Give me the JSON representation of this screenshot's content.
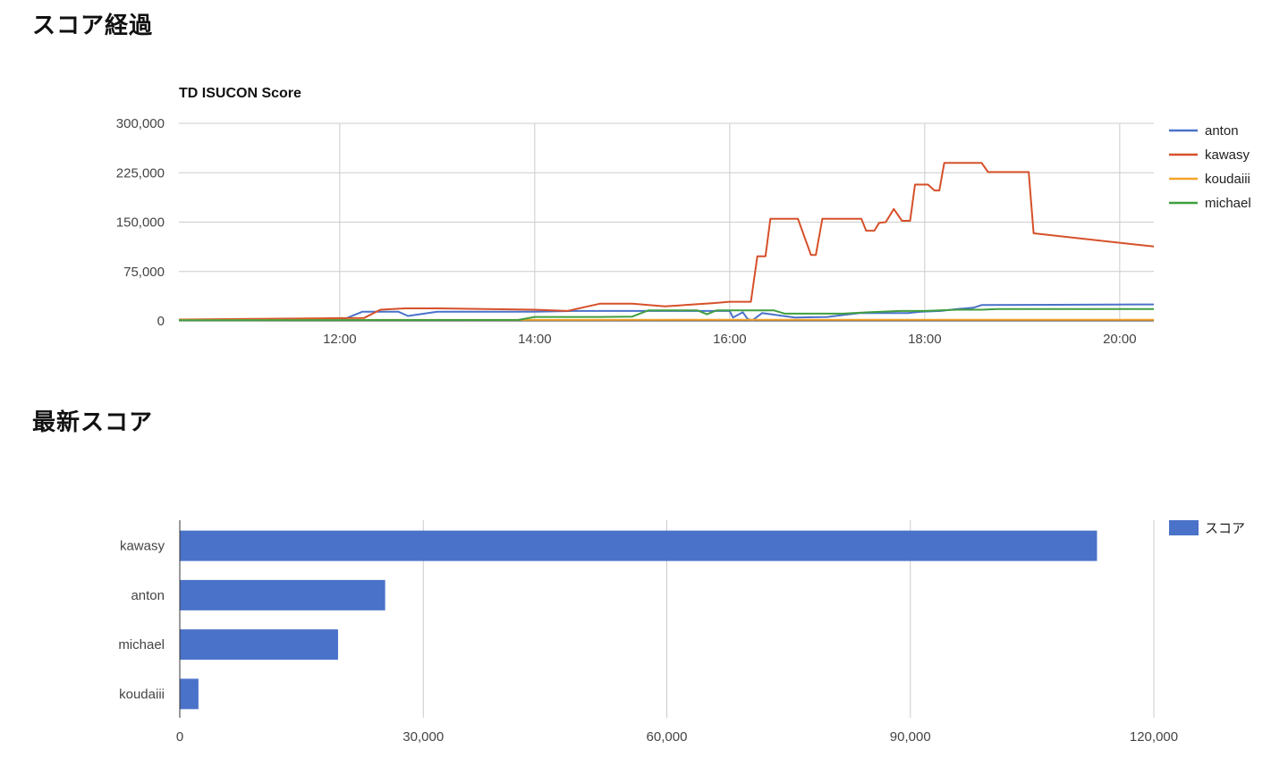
{
  "sections": {
    "history_title": "スコア経過",
    "latest_title": "最新スコア"
  },
  "chart_data": [
    {
      "type": "line",
      "title": "TD ISUCON Score",
      "xlabel": "",
      "ylabel": "",
      "xlim": [
        "10:21",
        "20:21"
      ],
      "ylim": [
        0,
        300000
      ],
      "x_ticks": [
        "12:00",
        "14:00",
        "16:00",
        "18:00",
        "20:00"
      ],
      "y_ticks": [
        "0",
        "75,000",
        "150,000",
        "225,000",
        "300,000"
      ],
      "grid": true,
      "legend_position": "right",
      "series": [
        {
          "name": "anton",
          "color": "#4a72c9",
          "points": [
            [
              "10:21",
              1500
            ],
            [
              "11:50",
              2500
            ],
            [
              "12:03",
              3000
            ],
            [
              "12:14",
              14000
            ],
            [
              "12:36",
              14000
            ],
            [
              "12:42",
              7500
            ],
            [
              "13:00",
              14000
            ],
            [
              "14:00",
              14000
            ],
            [
              "14:25",
              15000
            ],
            [
              "15:30",
              15000
            ],
            [
              "16:00",
              15000
            ],
            [
              "16:02",
              5000
            ],
            [
              "16:08",
              13000
            ],
            [
              "16:11",
              3000
            ],
            [
              "16:14",
              1000
            ],
            [
              "16:20",
              12000
            ],
            [
              "16:40",
              5000
            ],
            [
              "17:00",
              6000
            ],
            [
              "17:10",
              9000
            ],
            [
              "17:20",
              12000
            ],
            [
              "17:50",
              12000
            ],
            [
              "17:58",
              14000
            ],
            [
              "18:10",
              15000
            ],
            [
              "18:20",
              18000
            ],
            [
              "18:30",
              20000
            ],
            [
              "18:35",
              24000
            ],
            [
              "20:21",
              25000
            ]
          ]
        },
        {
          "name": "kawasy",
          "color": "#d6502a",
          "points": [
            [
              "10:21",
              2000
            ],
            [
              "11:50",
              4000
            ],
            [
              "12:15",
              4500
            ],
            [
              "12:25",
              17000
            ],
            [
              "12:40",
              19000
            ],
            [
              "13:00",
              19000
            ],
            [
              "13:30",
              18000
            ],
            [
              "14:00",
              17000
            ],
            [
              "14:20",
              15000
            ],
            [
              "14:40",
              26000
            ],
            [
              "15:00",
              26000
            ],
            [
              "15:20",
              22000
            ],
            [
              "15:50",
              27000
            ],
            [
              "16:00",
              29000
            ],
            [
              "16:13",
              29000
            ],
            [
              "16:17",
              98000
            ],
            [
              "16:22",
              98000
            ],
            [
              "16:25",
              155000
            ],
            [
              "16:42",
              155000
            ],
            [
              "16:50",
              100000
            ],
            [
              "16:53",
              100000
            ],
            [
              "16:57",
              155000
            ],
            [
              "17:21",
              155000
            ],
            [
              "17:24",
              137000
            ],
            [
              "17:29",
              137000
            ],
            [
              "17:32",
              149000
            ],
            [
              "17:36",
              150000
            ],
            [
              "17:41",
              170000
            ],
            [
              "17:46",
              152000
            ],
            [
              "17:51",
              152000
            ],
            [
              "17:54",
              207000
            ],
            [
              "18:02",
              207000
            ],
            [
              "18:06",
              198000
            ],
            [
              "18:09",
              198000
            ],
            [
              "18:12",
              240000
            ],
            [
              "18:35",
              240000
            ],
            [
              "18:39",
              226000
            ],
            [
              "18:54",
              226000
            ],
            [
              "19:04",
              226000
            ],
            [
              "19:07",
              133000
            ],
            [
              "20:21",
              113000
            ]
          ]
        },
        {
          "name": "koudaiii",
          "color": "#f4a42c",
          "points": [
            [
              "10:21",
              1500
            ],
            [
              "20:21",
              1800
            ]
          ]
        },
        {
          "name": "michael",
          "color": "#3f9e3f",
          "points": [
            [
              "10:21",
              1000
            ],
            [
              "13:50",
              1500
            ],
            [
              "14:00",
              6000
            ],
            [
              "14:40",
              6000
            ],
            [
              "15:00",
              6500
            ],
            [
              "15:10",
              16000
            ],
            [
              "15:40",
              16000
            ],
            [
              "15:46",
              10000
            ],
            [
              "15:52",
              16000
            ],
            [
              "16:27",
              16000
            ],
            [
              "16:34",
              11000
            ],
            [
              "17:10",
              11000
            ],
            [
              "17:25",
              13000
            ],
            [
              "17:45",
              15000
            ],
            [
              "18:00",
              15000
            ],
            [
              "18:20",
              17000
            ],
            [
              "18:35",
              17000
            ],
            [
              "18:45",
              18000
            ],
            [
              "20:21",
              18000
            ]
          ]
        }
      ]
    },
    {
      "type": "bar",
      "orientation": "horizontal",
      "title": "",
      "xlabel": "",
      "ylabel": "",
      "categories": [
        "kawasy",
        "anton",
        "michael",
        "koudaiii"
      ],
      "series": [
        {
          "name": "スコア",
          "color": "#4a72c9",
          "values": [
            113000,
            25300,
            19500,
            2300
          ]
        }
      ],
      "xlim": [
        0,
        120000
      ],
      "x_ticks": [
        "0",
        "30,000",
        "60,000",
        "90,000",
        "120,000"
      ],
      "grid": true,
      "legend_position": "right"
    }
  ]
}
